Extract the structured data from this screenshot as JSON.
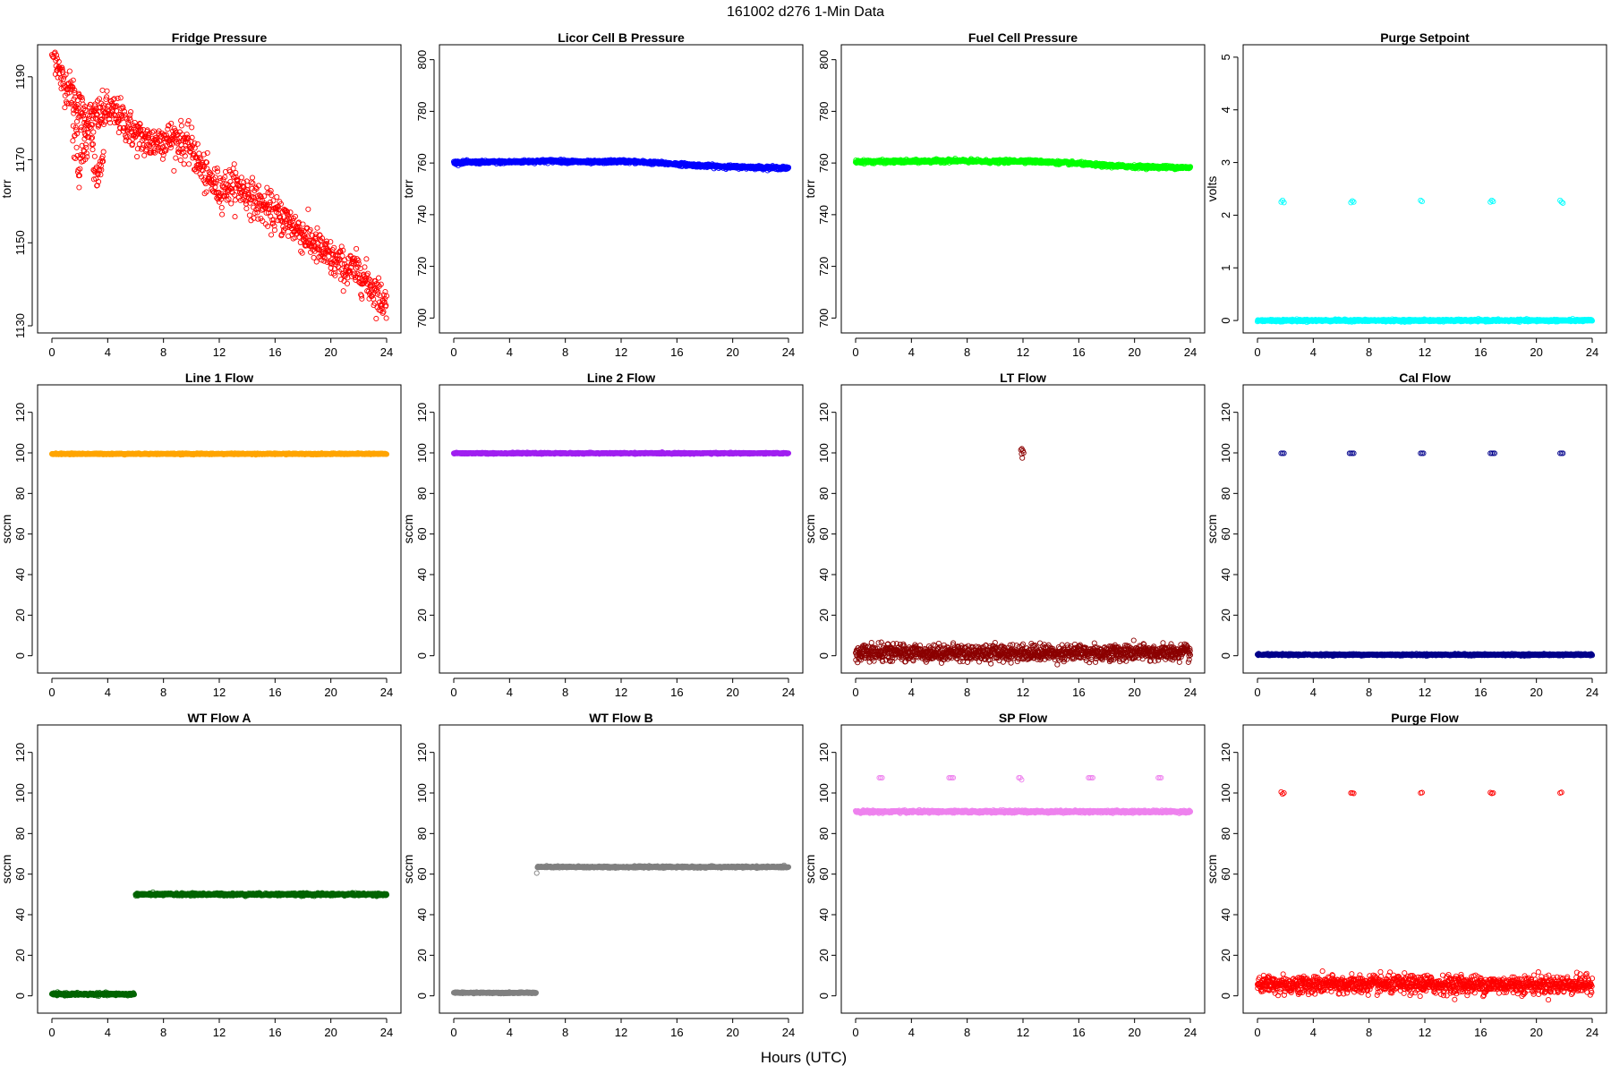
{
  "figure": {
    "title": "161002   d276   1-Min Data",
    "xlabel": "Hours (UTC)"
  },
  "chart_data": [
    {
      "type": "scatter",
      "title": "Fridge Pressure",
      "ylabel": "torr",
      "xlim": [
        0,
        24
      ],
      "ylim": [
        1130,
        1196
      ],
      "xticks": [
        0,
        4,
        8,
        12,
        16,
        20,
        24
      ],
      "yticks": [
        1130,
        1150,
        1170,
        1190
      ],
      "color": "#ff0000",
      "grid": false,
      "series": [
        {
          "kind": "profile",
          "points": [
            [
              0,
              1196
            ],
            [
              0.3,
              1195
            ],
            [
              0.6,
              1190
            ],
            [
              1,
              1188
            ],
            [
              1.5,
              1186
            ],
            [
              2,
              1182
            ],
            [
              2.5,
              1180
            ],
            [
              3,
              1180
            ],
            [
              3.5,
              1181
            ],
            [
              4,
              1182
            ],
            [
              5,
              1180
            ],
            [
              6,
              1176
            ],
            [
              7,
              1174
            ],
            [
              8,
              1175
            ],
            [
              9,
              1175
            ],
            [
              10,
              1173
            ],
            [
              11,
              1166
            ],
            [
              12,
              1163
            ],
            [
              13,
              1164
            ],
            [
              14,
              1162
            ],
            [
              15,
              1159
            ],
            [
              16,
              1157
            ],
            [
              17,
              1155
            ],
            [
              18,
              1152
            ],
            [
              19,
              1149
            ],
            [
              20,
              1146
            ],
            [
              21,
              1144
            ],
            [
              22,
              1143
            ],
            [
              23,
              1139
            ],
            [
              24,
              1135
            ]
          ],
          "noise": 2.2,
          "step": 0.025
        },
        {
          "kind": "profile",
          "points": [
            [
              1.5,
              1180
            ],
            [
              1.7,
              1174
            ],
            [
              2,
              1168
            ],
            [
              2.3,
              1174
            ],
            [
              2.6,
              1178
            ]
          ],
          "noise": 3,
          "step": 0.03
        },
        {
          "kind": "profile",
          "points": [
            [
              2.8,
              1175
            ],
            [
              3.1,
              1167
            ],
            [
              3.4,
              1166
            ],
            [
              3.7,
              1171
            ]
          ],
          "noise": 2,
          "step": 0.03
        }
      ]
    },
    {
      "type": "scatter",
      "title": "Licor Cell B Pressure",
      "ylabel": "torr",
      "xlim": [
        0,
        24
      ],
      "ylim": [
        697,
        803
      ],
      "xticks": [
        0,
        4,
        8,
        12,
        16,
        20,
        24
      ],
      "yticks": [
        700,
        720,
        740,
        760,
        780,
        800
      ],
      "color": "#0000ff",
      "grid": false,
      "series": [
        {
          "kind": "profile",
          "points": [
            [
              0,
              760.2
            ],
            [
              4,
              760.4
            ],
            [
              7,
              760.8
            ],
            [
              10,
              760.3
            ],
            [
              12,
              760.7
            ],
            [
              14,
              760.2
            ],
            [
              16,
              759.6
            ],
            [
              18,
              758.9
            ],
            [
              20,
              758.5
            ],
            [
              22,
              758.3
            ],
            [
              24,
              758
            ]
          ],
          "noise": 0.3,
          "step": 0.02
        }
      ]
    },
    {
      "type": "scatter",
      "title": "Fuel Cell Pressure",
      "ylabel": "torr",
      "xlim": [
        0,
        24
      ],
      "ylim": [
        697,
        803
      ],
      "xticks": [
        0,
        4,
        8,
        12,
        16,
        20,
        24
      ],
      "yticks": [
        700,
        720,
        740,
        760,
        780,
        800
      ],
      "color": "#00ff00",
      "grid": false,
      "series": [
        {
          "kind": "profile",
          "points": [
            [
              0,
              760.5
            ],
            [
              4,
              760.6
            ],
            [
              7,
              760.9
            ],
            [
              10,
              760.5
            ],
            [
              12,
              760.8
            ],
            [
              14,
              760.3
            ],
            [
              16,
              759.8
            ],
            [
              18,
              759
            ],
            [
              20,
              758.6
            ],
            [
              22,
              758.4
            ],
            [
              24,
              758.2
            ]
          ],
          "noise": 0.3,
          "step": 0.02
        }
      ]
    },
    {
      "type": "scatter",
      "title": "Purge Setpoint",
      "ylabel": "volts",
      "xlim": [
        0,
        24
      ],
      "ylim": [
        -0.1,
        5.1
      ],
      "xticks": [
        0,
        4,
        8,
        12,
        16,
        20,
        24
      ],
      "yticks": [
        0,
        1,
        2,
        3,
        4,
        5
      ],
      "color": "#00ffff",
      "grid": false,
      "series": [
        {
          "kind": "profile",
          "points": [
            [
              0,
              0
            ],
            [
              24,
              0
            ]
          ],
          "noise": 0.01,
          "step": 0.02
        },
        {
          "kind": "points",
          "points": [
            [
              1.7,
              2.25
            ],
            [
              1.8,
              2.28
            ],
            [
              1.9,
              2.24
            ],
            [
              6.7,
              2.24
            ],
            [
              6.8,
              2.27
            ],
            [
              6.9,
              2.25
            ],
            [
              11.7,
              2.28
            ],
            [
              11.8,
              2.26
            ],
            [
              16.7,
              2.25
            ],
            [
              16.8,
              2.28
            ],
            [
              16.9,
              2.26
            ],
            [
              21.7,
              2.28
            ],
            [
              21.8,
              2.25
            ],
            [
              21.9,
              2.23
            ]
          ]
        }
      ]
    },
    {
      "type": "scatter",
      "title": "Line 1 Flow",
      "ylabel": "sccm",
      "xlim": [
        0,
        24
      ],
      "ylim": [
        -5,
        130
      ],
      "xticks": [
        0,
        4,
        8,
        12,
        16,
        20,
        24
      ],
      "yticks": [
        0,
        20,
        40,
        60,
        80,
        100,
        120
      ],
      "color": "#ffa500",
      "grid": false,
      "series": [
        {
          "kind": "profile",
          "points": [
            [
              0,
              99.5
            ],
            [
              24,
              99.5
            ]
          ],
          "noise": 0.15,
          "step": 0.02
        }
      ]
    },
    {
      "type": "scatter",
      "title": "Line 2 Flow",
      "ylabel": "sccm",
      "xlim": [
        0,
        24
      ],
      "ylim": [
        -5,
        130
      ],
      "xticks": [
        0,
        4,
        8,
        12,
        16,
        20,
        24
      ],
      "yticks": [
        0,
        20,
        40,
        60,
        80,
        100,
        120
      ],
      "color": "#a020f0",
      "grid": false,
      "series": [
        {
          "kind": "profile",
          "points": [
            [
              0,
              99.8
            ],
            [
              24,
              99.8
            ]
          ],
          "noise": 0.15,
          "step": 0.02
        }
      ]
    },
    {
      "type": "scatter",
      "title": "LT Flow",
      "ylabel": "sccm",
      "xlim": [
        0,
        24
      ],
      "ylim": [
        -5,
        130
      ],
      "xticks": [
        0,
        4,
        8,
        12,
        16,
        20,
        24
      ],
      "yticks": [
        0,
        20,
        40,
        60,
        80,
        100,
        120
      ],
      "color": "#8b0000",
      "grid": false,
      "series": [
        {
          "kind": "profile",
          "points": [
            [
              0,
              1.5
            ],
            [
              24,
              1.5
            ]
          ],
          "noise": 2,
          "step": 0.02
        },
        {
          "kind": "points",
          "points": [
            [
              11.85,
              101.5
            ],
            [
              11.9,
              99.5
            ],
            [
              11.95,
              97.5
            ],
            [
              12.0,
              101
            ],
            [
              12.05,
              100
            ],
            [
              11.92,
              102
            ]
          ]
        }
      ]
    },
    {
      "type": "scatter",
      "title": "Cal Flow",
      "ylabel": "sccm",
      "xlim": [
        0,
        24
      ],
      "ylim": [
        -5,
        130
      ],
      "xticks": [
        0,
        4,
        8,
        12,
        16,
        20,
        24
      ],
      "yticks": [
        0,
        20,
        40,
        60,
        80,
        100,
        120
      ],
      "color": "#00008b",
      "grid": false,
      "series": [
        {
          "kind": "profile",
          "points": [
            [
              0,
              0.5
            ],
            [
              24,
              0.5
            ]
          ],
          "noise": 0.2,
          "step": 0.02
        },
        {
          "kind": "points",
          "points": [
            [
              1.7,
              99.8
            ],
            [
              1.8,
              99.8
            ],
            [
              1.9,
              99.8
            ],
            [
              6.6,
              99.8
            ],
            [
              6.7,
              99.8
            ],
            [
              6.8,
              99.8
            ],
            [
              6.9,
              99.8
            ],
            [
              11.7,
              99.8
            ],
            [
              11.8,
              99.8
            ],
            [
              11.9,
              99.8
            ],
            [
              16.7,
              99.8
            ],
            [
              16.8,
              99.8
            ],
            [
              16.9,
              99.8
            ],
            [
              17.0,
              99.8
            ],
            [
              21.7,
              99.8
            ],
            [
              21.8,
              99.8
            ],
            [
              21.9,
              99.8
            ]
          ]
        }
      ]
    },
    {
      "type": "scatter",
      "title": "WT Flow A",
      "ylabel": "sccm",
      "xlim": [
        0,
        24
      ],
      "ylim": [
        -5,
        130
      ],
      "xticks": [
        0,
        4,
        8,
        12,
        16,
        20,
        24
      ],
      "yticks": [
        0,
        20,
        40,
        60,
        80,
        100,
        120
      ],
      "color": "#006400",
      "grid": false,
      "series": [
        {
          "kind": "profile",
          "points": [
            [
              0,
              0.8
            ],
            [
              5.9,
              0.8
            ]
          ],
          "noise": 0.3,
          "step": 0.02
        },
        {
          "kind": "profile",
          "points": [
            [
              6,
              50
            ],
            [
              24,
              50
            ]
          ],
          "noise": 0.3,
          "step": 0.02
        }
      ]
    },
    {
      "type": "scatter",
      "title": "WT Flow B",
      "ylabel": "sccm",
      "xlim": [
        0,
        24
      ],
      "ylim": [
        -5,
        130
      ],
      "xticks": [
        0,
        4,
        8,
        12,
        16,
        20,
        24
      ],
      "yticks": [
        0,
        20,
        40,
        60,
        80,
        100,
        120
      ],
      "color": "#808080",
      "grid": false,
      "series": [
        {
          "kind": "profile",
          "points": [
            [
              0,
              1.5
            ],
            [
              5.9,
              1.5
            ]
          ],
          "noise": 0.15,
          "step": 0.02
        },
        {
          "kind": "profile",
          "points": [
            [
              6,
              63.5
            ],
            [
              24,
              63.5
            ]
          ],
          "noise": 0.2,
          "step": 0.02
        },
        {
          "kind": "points",
          "points": [
            [
              5.95,
              60.5
            ]
          ]
        }
      ]
    },
    {
      "type": "scatter",
      "title": "SP Flow",
      "ylabel": "sccm",
      "xlim": [
        0,
        24
      ],
      "ylim": [
        -5,
        130
      ],
      "xticks": [
        0,
        4,
        8,
        12,
        16,
        20,
        24
      ],
      "yticks": [
        0,
        20,
        40,
        60,
        80,
        100,
        120
      ],
      "color": "#ee82ee",
      "grid": false,
      "series": [
        {
          "kind": "profile",
          "points": [
            [
              0,
              90.8
            ],
            [
              24,
              90.8
            ]
          ],
          "noise": 0.3,
          "step": 0.02
        },
        {
          "kind": "points",
          "points": [
            [
              1.7,
              107.5
            ],
            [
              1.8,
              107.5
            ],
            [
              1.9,
              107.5
            ],
            [
              6.7,
              107.5
            ],
            [
              6.8,
              107.5
            ],
            [
              6.9,
              107.5
            ],
            [
              7.0,
              107.5
            ],
            [
              11.7,
              107.5
            ],
            [
              11.8,
              107.5
            ],
            [
              11.9,
              106.5
            ],
            [
              16.7,
              107.5
            ],
            [
              16.8,
              107.5
            ],
            [
              16.9,
              107.5
            ],
            [
              17.0,
              107.5
            ],
            [
              21.7,
              107.5
            ],
            [
              21.8,
              107.5
            ],
            [
              21.9,
              107.5
            ]
          ]
        }
      ]
    },
    {
      "type": "scatter",
      "title": "Purge Flow",
      "ylabel": "sccm",
      "xlim": [
        0,
        24
      ],
      "ylim": [
        -5,
        130
      ],
      "xticks": [
        0,
        4,
        8,
        12,
        16,
        20,
        24
      ],
      "yticks": [
        0,
        20,
        40,
        60,
        80,
        100,
        120
      ],
      "color": "#ff0000",
      "grid": false,
      "series": [
        {
          "kind": "profile",
          "points": [
            [
              0,
              5.5
            ],
            [
              24,
              5.5
            ]
          ],
          "noise": 2.2,
          "step": 0.02
        },
        {
          "kind": "points",
          "points": [
            [
              1.7,
              100.5
            ],
            [
              1.8,
              99.5
            ],
            [
              1.9,
              100
            ],
            [
              6.7,
              100
            ],
            [
              6.8,
              100
            ],
            [
              6.9,
              99.8
            ],
            [
              11.7,
              100
            ],
            [
              11.8,
              100.2
            ],
            [
              16.7,
              100.2
            ],
            [
              16.8,
              99.8
            ],
            [
              16.9,
              100
            ],
            [
              21.7,
              100
            ],
            [
              21.8,
              100.3
            ],
            [
              11.9,
              9.5
            ],
            [
              12.0,
              9.8
            ],
            [
              14.6,
              10.5
            ]
          ]
        }
      ]
    }
  ]
}
